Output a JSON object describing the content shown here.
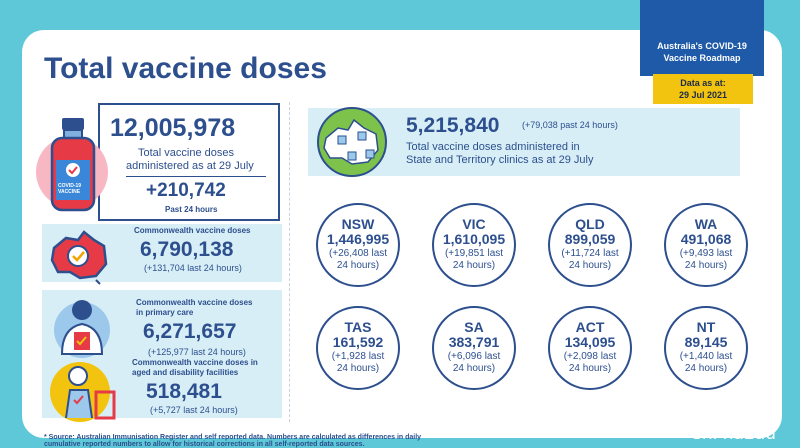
{
  "title": "Total vaccine doses",
  "roadmap_label": "Australia's COVID-19 Vaccine Roadmap",
  "data_as_at": {
    "label": "Data as at:",
    "date": "29 Jul 2021"
  },
  "total": {
    "value": "12,005,978",
    "desc_line1": "Total vaccine doses",
    "desc_line2": "administered as at 29 July",
    "change": "+210,742",
    "change_label": "Past 24 hours",
    "vial_label_line1": "COVID-19",
    "vial_label_line2": "VACCINE"
  },
  "commonwealth": {
    "label": "Commonwealth vaccine doses",
    "value": "6,790,138",
    "change": "(+131,704 last 24 hours)"
  },
  "primary_care": {
    "label_line1": "Commonwealth vaccine doses",
    "label_line2": "in primary care",
    "value": "6,271,657",
    "change": "(+125,977 last 24 hours)"
  },
  "aged_care": {
    "label_line1": "Commonwealth vaccine doses in",
    "label_line2": "aged and disability facilities",
    "value": "518,481",
    "change": "(+5,727 last 24 hours)"
  },
  "state_clinics": {
    "value": "5,215,840",
    "change": "(+79,038 past 24 hours)",
    "desc_line1": "Total vaccine doses administered in",
    "desc_line2": "State and Territory clinics as at 29 July"
  },
  "states": [
    {
      "name": "NSW",
      "value": "1,446,995",
      "change_line1": "(+26,408 last",
      "change_line2": "24 hours)"
    },
    {
      "name": "VIC",
      "value": "1,610,095",
      "change_line1": "(+19,851 last",
      "change_line2": "24 hours)"
    },
    {
      "name": "QLD",
      "value": "899,059",
      "change_line1": "(+11,724 last",
      "change_line2": "24 hours)"
    },
    {
      "name": "WA",
      "value": "491,068",
      "change_line1": "(+9,493 last",
      "change_line2": "24 hours)"
    },
    {
      "name": "TAS",
      "value": "161,592",
      "change_line1": "(+1,928 last",
      "change_line2": "24 hours)"
    },
    {
      "name": "SA",
      "value": "383,791",
      "change_line1": "(+6,096 last",
      "change_line2": "24 hours)"
    },
    {
      "name": "ACT",
      "value": "134,095",
      "change_line1": "(+2,098 last",
      "change_line2": "24 hours)"
    },
    {
      "name": "NT",
      "value": "89,145",
      "change_line1": "(+1,440 last",
      "change_line2": "24 hours)"
    }
  ],
  "footnote_line1": "* Source: Australian Immunisation Register and self reported data. Numbers are calculated as differences in daily",
  "footnote_line2": "cumulative reported numbers to allow for historical corrections in all self-reported data sources.",
  "watermark": "Chi na2au",
  "colors": {
    "navy": "#2d4f8e",
    "panel": "#d7eef6",
    "background": "#5ec8d8",
    "roadmap": "#1e5aa8",
    "highlight": "#f2c40f",
    "accent_red": "#e63a46"
  }
}
